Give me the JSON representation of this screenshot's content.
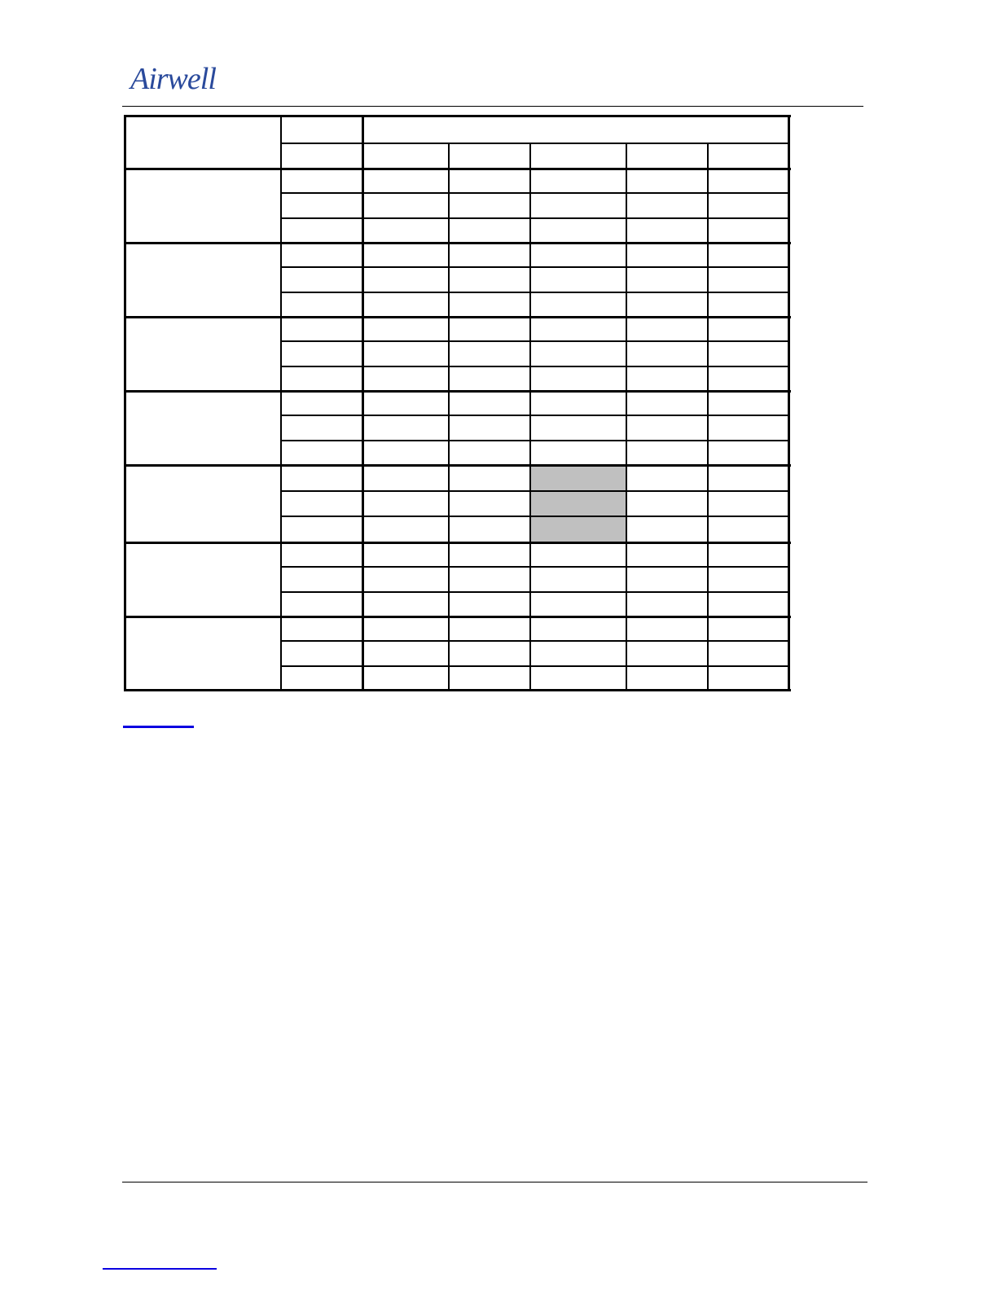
{
  "header": {
    "logo_text": "Airwell"
  },
  "colors": {
    "logo": "#2a4a9c",
    "link_underline": "#0a00e0",
    "shaded_cell": "#c0c0c0",
    "rule": "#000000"
  },
  "table": {
    "groups": 7,
    "rows_per_group": 3,
    "data_columns": 5,
    "shaded": {
      "group": 5,
      "column": 3
    }
  }
}
